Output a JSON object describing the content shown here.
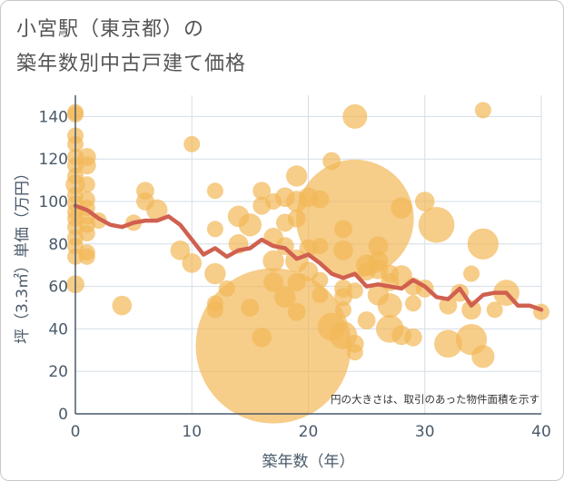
{
  "chart_data": {
    "type": "scatter",
    "title_lines": [
      "小宮駅（東京都）の",
      "築年数別中古戸建て価格"
    ],
    "xlabel": "築年数（年）",
    "ylabel": "坪（3.3㎡）単価（万円）",
    "xlim": [
      0,
      40
    ],
    "ylim": [
      0,
      150
    ],
    "x_ticks": [
      0,
      10,
      20,
      30,
      40
    ],
    "y_ticks": [
      0,
      20,
      40,
      60,
      80,
      100,
      120,
      140
    ],
    "grid": true,
    "note": "円の大きさは、取引のあった物件面積を示す",
    "colors": {
      "bubble": "#f2b857",
      "line": "#d0604f",
      "grid": "#d5dde6",
      "axis": "#4a5a6a"
    },
    "series": [
      {
        "kind": "bubble",
        "points": [
          {
            "x": 0,
            "y": 142,
            "s": 1
          },
          {
            "x": 0,
            "y": 141,
            "s": 1
          },
          {
            "x": 0,
            "y": 131,
            "s": 1
          },
          {
            "x": 0,
            "y": 127,
            "s": 1
          },
          {
            "x": 0,
            "y": 121,
            "s": 1
          },
          {
            "x": 0,
            "y": 117,
            "s": 1
          },
          {
            "x": 0,
            "y": 112,
            "s": 1
          },
          {
            "x": 0,
            "y": 108,
            "s": 1.2
          },
          {
            "x": 0,
            "y": 103,
            "s": 1
          },
          {
            "x": 0,
            "y": 99,
            "s": 1
          },
          {
            "x": 0,
            "y": 95,
            "s": 1
          },
          {
            "x": 0,
            "y": 92,
            "s": 1
          },
          {
            "x": 0,
            "y": 88,
            "s": 1
          },
          {
            "x": 0,
            "y": 83,
            "s": 1
          },
          {
            "x": 0,
            "y": 79,
            "s": 1
          },
          {
            "x": 0,
            "y": 74,
            "s": 1
          },
          {
            "x": 0,
            "y": 61,
            "s": 1.1
          },
          {
            "x": 1,
            "y": 121,
            "s": 1.1
          },
          {
            "x": 1,
            "y": 117,
            "s": 1.1
          },
          {
            "x": 1,
            "y": 108,
            "s": 1
          },
          {
            "x": 1,
            "y": 101,
            "s": 1
          },
          {
            "x": 1,
            "y": 97,
            "s": 1
          },
          {
            "x": 1,
            "y": 93,
            "s": 1
          },
          {
            "x": 1,
            "y": 89,
            "s": 1
          },
          {
            "x": 1,
            "y": 85,
            "s": 1
          },
          {
            "x": 1,
            "y": 76,
            "s": 1
          },
          {
            "x": 1,
            "y": 74,
            "s": 1
          },
          {
            "x": 2,
            "y": 91,
            "s": 1
          },
          {
            "x": 4,
            "y": 51,
            "s": 1.2
          },
          {
            "x": 5,
            "y": 90,
            "s": 1
          },
          {
            "x": 6,
            "y": 105,
            "s": 1.1
          },
          {
            "x": 6,
            "y": 100,
            "s": 1.1
          },
          {
            "x": 7,
            "y": 96,
            "s": 1.3
          },
          {
            "x": 9,
            "y": 77,
            "s": 1.2
          },
          {
            "x": 10,
            "y": 127,
            "s": 1
          },
          {
            "x": 10,
            "y": 71,
            "s": 1.2
          },
          {
            "x": 12,
            "y": 105,
            "s": 1
          },
          {
            "x": 12,
            "y": 87,
            "s": 1
          },
          {
            "x": 12,
            "y": 66,
            "s": 1.3
          },
          {
            "x": 12,
            "y": 52,
            "s": 1
          },
          {
            "x": 12,
            "y": 49,
            "s": 1
          },
          {
            "x": 13,
            "y": 59,
            "s": 1
          },
          {
            "x": 14,
            "y": 93,
            "s": 1.3
          },
          {
            "x": 14,
            "y": 80,
            "s": 1.2
          },
          {
            "x": 15,
            "y": 89,
            "s": 1.4
          },
          {
            "x": 15,
            "y": 50,
            "s": 1.1
          },
          {
            "x": 16,
            "y": 105,
            "s": 1.1
          },
          {
            "x": 16,
            "y": 98,
            "s": 1.1
          },
          {
            "x": 16,
            "y": 36,
            "s": 1.2
          },
          {
            "x": 17,
            "y": 32,
            "s": 9.5
          },
          {
            "x": 17,
            "y": 100,
            "s": 1
          },
          {
            "x": 17,
            "y": 83,
            "s": 1.2
          },
          {
            "x": 17,
            "y": 72,
            "s": 1.3
          },
          {
            "x": 17,
            "y": 62,
            "s": 1.2
          },
          {
            "x": 18,
            "y": 102,
            "s": 1.2
          },
          {
            "x": 18,
            "y": 90,
            "s": 1.1
          },
          {
            "x": 18,
            "y": 79,
            "s": 1.1
          },
          {
            "x": 18,
            "y": 55,
            "s": 1.3
          },
          {
            "x": 19,
            "y": 112,
            "s": 1.3
          },
          {
            "x": 19,
            "y": 100,
            "s": 1.3
          },
          {
            "x": 19,
            "y": 92,
            "s": 1.1
          },
          {
            "x": 19,
            "y": 72,
            "s": 1.4
          },
          {
            "x": 19,
            "y": 62,
            "s": 1.1
          },
          {
            "x": 19,
            "y": 48,
            "s": 1.1
          },
          {
            "x": 20,
            "y": 102,
            "s": 1.2
          },
          {
            "x": 20,
            "y": 78,
            "s": 1.1
          },
          {
            "x": 20,
            "y": 67,
            "s": 1.2
          },
          {
            "x": 21,
            "y": 101,
            "s": 1.1
          },
          {
            "x": 21,
            "y": 79,
            "s": 1
          },
          {
            "x": 21,
            "y": 63,
            "s": 1
          },
          {
            "x": 21,
            "y": 56,
            "s": 1
          },
          {
            "x": 22,
            "y": 119,
            "s": 1.1
          },
          {
            "x": 22,
            "y": 41,
            "s": 1.7
          },
          {
            "x": 23,
            "y": 87,
            "s": 1.1
          },
          {
            "x": 23,
            "y": 77,
            "s": 1.2
          },
          {
            "x": 23,
            "y": 59,
            "s": 1.1
          },
          {
            "x": 23,
            "y": 55,
            "s": 1.1
          },
          {
            "x": 23,
            "y": 49,
            "s": 1
          },
          {
            "x": 23,
            "y": 37,
            "s": 1.7
          },
          {
            "x": 24,
            "y": 92,
            "s": 7.2
          },
          {
            "x": 24,
            "y": 140,
            "s": 1.5
          },
          {
            "x": 24,
            "y": 58,
            "s": 1
          },
          {
            "x": 24,
            "y": 33,
            "s": 1.1
          },
          {
            "x": 24,
            "y": 29,
            "s": 1
          },
          {
            "x": 25,
            "y": 70,
            "s": 1.3
          },
          {
            "x": 25,
            "y": 67,
            "s": 1.1
          },
          {
            "x": 25,
            "y": 44,
            "s": 1.1
          },
          {
            "x": 26,
            "y": 79,
            "s": 1.2
          },
          {
            "x": 26,
            "y": 72,
            "s": 1.2
          },
          {
            "x": 26,
            "y": 68,
            "s": 1.2
          },
          {
            "x": 26,
            "y": 56,
            "s": 1.3
          },
          {
            "x": 27,
            "y": 66,
            "s": 1.1
          },
          {
            "x": 27,
            "y": 62,
            "s": 1.1
          },
          {
            "x": 27,
            "y": 51,
            "s": 1.5
          },
          {
            "x": 27,
            "y": 40,
            "s": 1.7
          },
          {
            "x": 28,
            "y": 97,
            "s": 1.3
          },
          {
            "x": 28,
            "y": 65,
            "s": 1.3
          },
          {
            "x": 28,
            "y": 37,
            "s": 1.2
          },
          {
            "x": 29,
            "y": 60,
            "s": 1.1
          },
          {
            "x": 29,
            "y": 52,
            "s": 1
          },
          {
            "x": 29,
            "y": 36,
            "s": 1.1
          },
          {
            "x": 30,
            "y": 100,
            "s": 1.2
          },
          {
            "x": 30,
            "y": 59,
            "s": 1.1
          },
          {
            "x": 31,
            "y": 89,
            "s": 2.2
          },
          {
            "x": 32,
            "y": 51,
            "s": 1.1
          },
          {
            "x": 32,
            "y": 33,
            "s": 1.7
          },
          {
            "x": 33,
            "y": 57,
            "s": 1.1
          },
          {
            "x": 34,
            "y": 66,
            "s": 1
          },
          {
            "x": 34,
            "y": 49,
            "s": 1.2
          },
          {
            "x": 34,
            "y": 35,
            "s": 1.9
          },
          {
            "x": 35,
            "y": 143,
            "s": 1
          },
          {
            "x": 35,
            "y": 80,
            "s": 1.9
          },
          {
            "x": 35,
            "y": 27,
            "s": 1.4
          },
          {
            "x": 36,
            "y": 49,
            "s": 1
          },
          {
            "x": 37,
            "y": 57,
            "s": 1.6
          },
          {
            "x": 40,
            "y": 48,
            "s": 1
          }
        ]
      },
      {
        "kind": "line",
        "x": [
          0,
          1,
          2,
          3,
          4,
          5,
          6,
          7,
          8,
          9,
          10,
          11,
          12,
          13,
          14,
          15,
          16,
          17,
          18,
          19,
          20,
          21,
          22,
          23,
          24,
          25,
          26,
          27,
          28,
          29,
          30,
          31,
          32,
          33,
          34,
          35,
          36,
          37,
          38,
          39,
          40
        ],
        "y": [
          98,
          96,
          92,
          89,
          88,
          90,
          91,
          91,
          93,
          89,
          82,
          75,
          78,
          74,
          77,
          78,
          82,
          79,
          78,
          73,
          75,
          71,
          66,
          64,
          66,
          60,
          61,
          60,
          59,
          63,
          60,
          55,
          54,
          59,
          51,
          56,
          57,
          57,
          51,
          51,
          49
        ]
      }
    ]
  }
}
